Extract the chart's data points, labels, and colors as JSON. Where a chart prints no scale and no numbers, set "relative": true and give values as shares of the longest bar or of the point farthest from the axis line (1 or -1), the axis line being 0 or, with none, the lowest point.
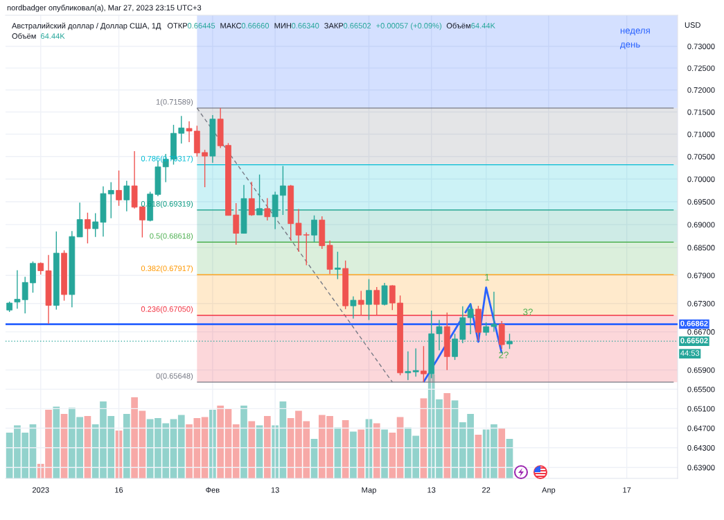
{
  "chart_data": [
    {
      "type": "candlestick",
      "title": "Австралийский доллар / Доллар США, 1Д",
      "ylabel": "USD",
      "categories": [
        null,
        null,
        null,
        null,
        "2023",
        null,
        null,
        null,
        null,
        null,
        null,
        null,
        null,
        null,
        "16",
        null,
        null,
        null,
        null,
        null,
        null,
        null,
        null,
        null,
        null,
        null,
        "Фев",
        null,
        null,
        null,
        null,
        null,
        null,
        null,
        "13",
        null,
        null,
        null,
        null,
        null,
        null,
        null,
        null,
        null,
        null,
        null,
        "Мар",
        null,
        null,
        null,
        null,
        null,
        null,
        null,
        "13",
        null,
        null,
        null,
        null,
        null,
        null,
        "22",
        null,
        null,
        null,
        null,
        null,
        null,
        null,
        "Апр",
        null,
        null,
        null,
        null,
        null,
        null,
        null,
        null,
        null,
        "17",
        null,
        null,
        null,
        null,
        null,
        null
      ],
      "ohlc": [
        [
          0.6716,
          0.6734,
          0.6712,
          0.6731
        ],
        [
          0.6733,
          0.6801,
          0.6719,
          0.6739
        ],
        [
          0.6738,
          0.6787,
          0.6709,
          0.6775
        ],
        [
          0.6774,
          0.682,
          0.6753,
          0.6816
        ],
        [
          0.6816,
          0.6818,
          0.6792,
          0.68
        ],
        [
          0.68,
          0.6834,
          0.6687,
          0.6726
        ],
        [
          0.6726,
          0.6885,
          0.6717,
          0.6838
        ],
        [
          0.6838,
          0.6844,
          0.6736,
          0.6749
        ],
        [
          0.6749,
          0.6886,
          0.6722,
          0.6874
        ],
        [
          0.6873,
          0.6948,
          0.6873,
          0.6911
        ],
        [
          0.6911,
          0.6926,
          0.6859,
          0.6891
        ],
        [
          0.6891,
          0.6925,
          0.6873,
          0.6906
        ],
        [
          0.6905,
          0.6984,
          0.6874,
          0.6968
        ],
        [
          0.6967,
          0.6993,
          0.6914,
          0.6975
        ],
        [
          0.6975,
          0.7019,
          0.6941,
          0.6954
        ],
        [
          0.6954,
          0.6996,
          0.6929,
          0.6985
        ],
        [
          0.6985,
          0.7062,
          0.6935,
          0.6938
        ],
        [
          0.6939,
          0.6939,
          0.6872,
          0.691
        ],
        [
          0.6909,
          0.6972,
          0.6907,
          0.6967
        ],
        [
          0.6966,
          0.704,
          0.6962,
          0.7027
        ],
        [
          0.7027,
          0.7056,
          0.6993,
          0.7044
        ],
        [
          0.7044,
          0.7121,
          0.7032,
          0.7102
        ],
        [
          0.7102,
          0.7141,
          0.7079,
          0.7114
        ],
        [
          0.7113,
          0.7129,
          0.7082,
          0.7107
        ],
        [
          0.7107,
          0.7119,
          0.705,
          0.7058
        ],
        [
          0.7059,
          0.7065,
          0.6982,
          0.7051
        ],
        [
          0.7051,
          0.7143,
          0.7036,
          0.7134
        ],
        [
          0.7134,
          0.7159,
          0.7069,
          0.7074
        ],
        [
          0.7075,
          0.708,
          0.692,
          0.692
        ],
        [
          0.6921,
          0.6947,
          0.6856,
          0.6881
        ],
        [
          0.6881,
          0.6987,
          0.6881,
          0.6957
        ],
        [
          0.6957,
          0.6994,
          0.6919,
          0.6921
        ],
        [
          0.6921,
          0.701,
          0.6921,
          0.6935
        ],
        [
          0.6935,
          0.6958,
          0.6909,
          0.6917
        ],
        [
          0.6917,
          0.6972,
          0.689,
          0.6965
        ],
        [
          0.6964,
          0.7029,
          0.6921,
          0.6985
        ],
        [
          0.6985,
          0.6987,
          0.6865,
          0.6902
        ],
        [
          0.6903,
          0.6934,
          0.6841,
          0.6877
        ],
        [
          0.6878,
          0.6883,
          0.6812,
          0.6877
        ],
        [
          0.6877,
          0.692,
          0.6862,
          0.691
        ],
        [
          0.691,
          0.6918,
          0.6847,
          0.6854
        ],
        [
          0.6855,
          0.6865,
          0.6793,
          0.6803
        ],
        [
          0.6803,
          0.6841,
          0.6782,
          0.6806
        ],
        [
          0.6805,
          0.6822,
          0.6718,
          0.6725
        ],
        [
          0.6725,
          0.6745,
          0.6698,
          0.6737
        ],
        [
          0.6737,
          0.6757,
          0.6705,
          0.6728
        ],
        [
          0.6728,
          0.6782,
          0.6695,
          0.6758
        ],
        [
          0.6758,
          0.6765,
          0.6706,
          0.6728
        ],
        [
          0.6728,
          0.6774,
          0.6726,
          0.6768
        ],
        [
          0.6768,
          0.6769,
          0.6716,
          0.6731
        ],
        [
          0.6731,
          0.6747,
          0.6579,
          0.6584
        ],
        [
          0.6584,
          0.6629,
          0.6569,
          0.6587
        ],
        [
          0.6586,
          0.6635,
          0.6576,
          0.6589
        ],
        [
          0.6588,
          0.664,
          0.6565,
          0.6582
        ],
        [
          0.6582,
          0.6715,
          0.6573,
          0.6666
        ],
        [
          0.6666,
          0.6695,
          0.6631,
          0.6681
        ],
        [
          0.6681,
          0.6711,
          0.659,
          0.6618
        ],
        [
          0.6618,
          0.6666,
          0.6611,
          0.6655
        ],
        [
          0.6654,
          0.6724,
          0.6646,
          0.67
        ],
        [
          0.67,
          0.6729,
          0.6665,
          0.6718
        ],
        [
          0.6718,
          0.6725,
          0.6651,
          0.6669
        ],
        [
          0.6669,
          0.669,
          0.6662,
          0.6681
        ],
        [
          0.6681,
          0.6755,
          0.667,
          0.6686
        ],
        [
          0.6686,
          0.6693,
          0.6634,
          0.6643
        ],
        [
          0.66445,
          0.6666,
          0.6634,
          0.66502
        ],
        null,
        null,
        null,
        null,
        null,
        null,
        null,
        null,
        null,
        null,
        null,
        null,
        null,
        null,
        null,
        null,
        null,
        null,
        null,
        null,
        null
      ],
      "colors": [
        "#26a69a",
        "#26a69a",
        "#26a69a",
        "#26a69a",
        "#ef5350",
        "#ef5350",
        "#26a69a",
        "#ef5350",
        "#26a69a",
        "#26a69a",
        "#ef5350",
        "#26a69a",
        "#26a69a",
        "#26a69a",
        "#ef5350",
        "#26a69a",
        "#ef5350",
        "#ef5350",
        "#26a69a",
        "#26a69a",
        "#26a69a",
        "#26a69a",
        "#26a69a",
        "#ef5350",
        "#ef5350",
        "#ef5350",
        "#26a69a",
        "#ef5350",
        "#ef5350",
        "#ef5350",
        "#26a69a",
        "#ef5350",
        "#26a69a",
        "#ef5350",
        "#26a69a",
        "#26a69a",
        "#ef5350",
        "#ef5350",
        "#ef5350",
        "#26a69a",
        "#ef5350",
        "#ef5350",
        "#26a69a",
        "#ef5350",
        "#26a69a",
        "#ef5350",
        "#26a69a",
        "#ef5350",
        "#26a69a",
        "#ef5350",
        "#ef5350",
        "#26a69a",
        "#26a69a",
        "#ef5350",
        "#26a69a",
        "#26a69a",
        "#ef5350",
        "#26a69a",
        "#26a69a",
        "#26a69a",
        "#ef5350",
        "#26a69a",
        "#26a69a",
        "#ef5350",
        "#26a69a",
        null,
        null,
        null,
        null,
        null,
        null,
        null,
        null,
        null,
        null,
        null,
        null,
        null,
        null,
        null,
        null,
        null,
        null,
        null,
        null,
        null
      ],
      "log": true,
      "ylim": [
        0.6368,
        0.7372
      ],
      "yticks": [
        {
          "value": 0.73,
          "label": "0.73000"
        },
        {
          "value": 0.725,
          "label": "0.72500"
        },
        {
          "value": 0.72,
          "label": "0.72000"
        },
        {
          "value": 0.715,
          "label": "0.71500"
        },
        {
          "value": 0.71,
          "label": "0.71000"
        },
        {
          "value": 0.705,
          "label": "0.70500"
        },
        {
          "value": 0.7,
          "label": "0.70000"
        },
        {
          "value": 0.695,
          "label": "0.69500"
        },
        {
          "value": 0.69,
          "label": "0.69000"
        },
        {
          "value": 0.685,
          "label": "0.68500"
        },
        {
          "value": 0.679,
          "label": "0.67900"
        },
        {
          "value": 0.673,
          "label": "0.67300"
        },
        {
          "value": 0.667,
          "label": "0.66700"
        },
        {
          "value": 0.659,
          "label": "0.65900"
        },
        {
          "value": 0.655,
          "label": "0.65500"
        },
        {
          "value": 0.651,
          "label": "0.65100"
        },
        {
          "value": 0.647,
          "label": "0.64700"
        },
        {
          "value": 0.643,
          "label": "0.64300"
        },
        {
          "value": 0.639,
          "label": "0.63900"
        }
      ],
      "grid": true,
      "series": [
        {
          "type": "line",
          "color": "#787b86",
          "line_style": "dashed",
          "values": [
            null,
            null,
            null,
            null,
            null,
            null,
            null,
            null,
            null,
            null,
            null,
            null,
            null,
            null,
            null,
            null,
            null,
            null,
            null,
            null,
            null,
            null,
            null,
            null,
            0.71589,
            0.71341,
            null,
            null,
            null,
            0.70359,
            0.70116,
            0.69874,
            0.69632,
            0.69391,
            null,
            0.68912,
            0.68673,
            0.68436,
            0.68199,
            0.67963,
            0.67728,
            0.67494,
            0.6726,
            0.67028,
            0.66796,
            0.66565,
            0.66335,
            0.66105,
            0.65876,
            0.65648,
            null,
            null,
            null,
            null,
            null,
            null,
            null,
            null,
            null,
            null,
            null,
            null,
            null,
            null,
            null,
            null,
            null,
            null,
            null,
            null,
            null,
            null,
            null,
            null,
            null,
            null,
            null,
            null,
            null,
            null,
            null,
            null,
            null,
            null,
            null,
            null
          ]
        },
        {
          "type": "line",
          "name": "1(0.71589)",
          "color": "#787b86",
          "values": [
            null,
            null,
            null,
            null,
            null,
            null,
            null,
            null,
            null,
            null,
            null,
            null,
            null,
            null,
            null,
            null,
            null,
            null,
            null,
            null,
            null,
            null,
            null,
            null,
            0.71589,
            0.71589,
            0.71589,
            0.71589,
            0.71589,
            0.71589,
            0.71589,
            0.71589,
            0.71589,
            0.71589,
            0.71589,
            0.71589,
            0.71589,
            0.71589,
            0.71589,
            0.71589,
            0.71589,
            0.71589,
            0.71589,
            0.71589,
            0.71589,
            0.71589,
            0.71589,
            0.71589,
            0.71589,
            0.71589,
            0.71589,
            0.71589,
            0.71589,
            0.71589,
            0.71589,
            0.71589,
            0.71589,
            0.71589,
            0.71589,
            0.71589,
            0.71589,
            0.71589,
            0.71589,
            0.71589,
            0.71589,
            0.71589,
            0.71589,
            0.71589,
            0.71589,
            0.71589,
            0.71589,
            0.71589,
            0.71589,
            0.71589,
            0.71589,
            0.71589,
            0.71589,
            0.71589,
            0.71589,
            0.71589,
            0.71589,
            0.71589,
            0.71589,
            0.71589,
            0.71589,
            0.71589
          ]
        },
        {
          "type": "line",
          "name": "0.786(0.70317)",
          "color": "#00bcd4",
          "values": [
            null,
            null,
            null,
            null,
            null,
            null,
            null,
            null,
            null,
            null,
            null,
            null,
            null,
            null,
            null,
            null,
            null,
            null,
            null,
            null,
            null,
            null,
            null,
            null,
            0.70317,
            0.70317,
            0.70317,
            0.70317,
            null,
            0.70317,
            0.70317,
            0.70317,
            0.70317,
            0.70317,
            0.70317,
            0.70317,
            0.70317,
            0.70317,
            0.70317,
            0.70317,
            0.70317,
            0.70317,
            0.70317,
            0.70317,
            0.70317,
            0.70317,
            0.70317,
            0.70317,
            0.70317,
            0.70317,
            0.70317,
            0.70317,
            0.70317,
            0.70317,
            0.70317,
            0.70317,
            0.70317,
            0.70317,
            0.70317,
            0.70317,
            0.70317,
            0.70317,
            0.70317,
            0.70317,
            0.70317,
            0.70317,
            0.70317,
            0.70317,
            0.70317,
            0.70317,
            0.70317,
            0.70317,
            0.70317,
            0.70317,
            0.70317,
            0.70317,
            0.70317,
            0.70317,
            0.70317,
            0.70317,
            0.70317,
            0.70317,
            0.70317,
            0.70317,
            0.70317,
            0.70317
          ]
        },
        {
          "type": "line",
          "name": "0.618(0.69319)",
          "color": "#089981",
          "values": [
            null,
            null,
            null,
            null,
            null,
            null,
            null,
            null,
            null,
            null,
            null,
            null,
            null,
            null,
            null,
            null,
            null,
            null,
            null,
            null,
            null,
            null,
            null,
            null,
            0.69319,
            0.69319,
            0.69319,
            0.69319,
            null,
            null,
            null,
            null,
            null,
            null,
            null,
            null,
            null,
            0.69319,
            0.69319,
            0.69319,
            0.69319,
            0.69319,
            0.69319,
            0.69319,
            0.69319,
            0.69319,
            0.69319,
            0.69319,
            0.69319,
            0.69319,
            0.69319,
            0.69319,
            0.69319,
            0.69319,
            0.69319,
            0.69319,
            0.69319,
            0.69319,
            0.69319,
            0.69319,
            0.69319,
            0.69319,
            0.69319,
            0.69319,
            0.69319,
            0.69319,
            0.69319,
            0.69319,
            0.69319,
            0.69319,
            0.69319,
            0.69319,
            0.69319,
            0.69319,
            0.69319,
            0.69319,
            0.69319,
            0.69319,
            0.69319,
            0.69319,
            0.69319,
            0.69319,
            0.69319,
            0.69319,
            0.69319,
            0.69319
          ]
        },
        {
          "type": "line",
          "name": "0.5(0.68618)",
          "color": "#4caf50",
          "values": [
            null,
            null,
            null,
            null,
            null,
            null,
            null,
            null,
            null,
            null,
            null,
            null,
            null,
            null,
            null,
            null,
            null,
            null,
            null,
            null,
            null,
            null,
            null,
            null,
            0.68618,
            0.68618,
            0.68618,
            0.68618,
            0.68618,
            0.68618,
            0.68618,
            0.68618,
            0.68618,
            0.68618,
            0.68618,
            0.68618,
            0.68618,
            0.68618,
            0.68618,
            0.68618,
            null,
            0.68618,
            0.68618,
            0.68618,
            0.68618,
            0.68618,
            0.68618,
            0.68618,
            0.68618,
            0.68618,
            0.68618,
            0.68618,
            0.68618,
            0.68618,
            0.68618,
            0.68618,
            0.68618,
            0.68618,
            0.68618,
            0.68618,
            0.68618,
            0.68618,
            0.68618,
            0.68618,
            0.68618,
            0.68618,
            0.68618,
            0.68618,
            0.68618,
            0.68618,
            0.68618,
            0.68618,
            0.68618,
            0.68618,
            0.68618,
            0.68618,
            0.68618,
            0.68618,
            0.68618,
            0.68618,
            0.68618,
            0.68618,
            0.68618,
            0.68618,
            0.68618,
            0.68618
          ]
        },
        {
          "type": "line",
          "name": "0.382(0.67917)",
          "color": "#ff9800",
          "values": [
            null,
            null,
            null,
            null,
            null,
            null,
            null,
            null,
            null,
            null,
            null,
            null,
            null,
            null,
            null,
            null,
            null,
            null,
            null,
            null,
            null,
            null,
            null,
            null,
            0.67917,
            0.67917,
            0.67917,
            0.67917,
            0.67917,
            0.67917,
            0.67917,
            0.67917,
            0.67917,
            0.67917,
            0.67917,
            0.67917,
            0.67917,
            0.67917,
            0.67917,
            0.67917,
            0.67917,
            0.67917,
            0.67917,
            null,
            0.67917,
            0.67917,
            0.67917,
            0.67917,
            0.67917,
            0.67917,
            0.67917,
            0.67917,
            0.67917,
            0.67917,
            0.67917,
            0.67917,
            0.67917,
            0.67917,
            0.67917,
            0.67917,
            0.67917,
            0.67917,
            0.67917,
            0.67917,
            0.67917,
            0.67917,
            0.67917,
            0.67917,
            0.67917,
            0.67917,
            0.67917,
            0.67917,
            0.67917,
            0.67917,
            0.67917,
            0.67917,
            0.67917,
            0.67917,
            0.67917,
            0.67917,
            0.67917,
            0.67917,
            0.67917,
            0.67917,
            0.67917,
            0.67917
          ]
        },
        {
          "type": "line",
          "name": "0.236(0.67050)",
          "color": "#f23645",
          "values": [
            null,
            null,
            null,
            null,
            null,
            null,
            null,
            null,
            null,
            null,
            null,
            null,
            null,
            null,
            null,
            null,
            null,
            null,
            null,
            null,
            null,
            null,
            null,
            null,
            0.6705,
            0.6705,
            0.6705,
            0.6705,
            0.6705,
            0.6705,
            0.6705,
            0.6705,
            0.6705,
            0.6705,
            0.6705,
            0.6705,
            0.6705,
            0.6705,
            0.6705,
            0.6705,
            0.6705,
            0.6705,
            0.6705,
            0.6705,
            0.6705,
            0.6705,
            0.6705,
            0.6705,
            0.6705,
            0.6705,
            null,
            0.6705,
            0.6705,
            0.6705,
            0.6705,
            0.6705,
            0.6705,
            0.6705,
            0.6705,
            null,
            null,
            0.6705,
            0.6705,
            0.6705,
            0.6705,
            0.6705,
            0.6705,
            0.6705,
            0.6705,
            0.6705,
            0.6705,
            0.6705,
            0.6705,
            0.6705,
            0.6705,
            0.6705,
            0.6705,
            0.6705,
            0.6705,
            0.6705,
            0.6705,
            0.6705,
            0.6705,
            0.6705,
            0.6705,
            0.6705
          ]
        },
        {
          "type": "line",
          "name": "0(0.65648)",
          "color": "#787b86",
          "values": [
            null,
            null,
            null,
            null,
            null,
            null,
            null,
            null,
            null,
            null,
            null,
            null,
            null,
            null,
            null,
            null,
            null,
            null,
            null,
            null,
            null,
            null,
            null,
            null,
            0.65648,
            0.65648,
            0.65648,
            0.65648,
            0.65648,
            0.65648,
            0.65648,
            0.65648,
            0.65648,
            0.65648,
            0.65648,
            0.65648,
            0.65648,
            0.65648,
            0.65648,
            0.65648,
            0.65648,
            0.65648,
            0.65648,
            0.65648,
            0.65648,
            0.65648,
            0.65648,
            0.65648,
            0.65648,
            0.65648,
            0.65648,
            0.65648,
            0.65648,
            0.65648,
            0.65648,
            0.65648,
            0.65648,
            0.65648,
            0.65648,
            0.65648,
            0.65648,
            0.65648,
            0.65648,
            0.65648,
            0.65648,
            0.65648,
            0.65648,
            0.65648,
            0.65648,
            0.65648,
            0.65648,
            0.65648,
            0.65648,
            0.65648,
            0.65648,
            0.65648,
            0.65648,
            0.65648,
            0.65648,
            0.65648,
            0.65648,
            0.65648,
            0.65648,
            0.65648,
            0.65648,
            0.65648
          ]
        },
        {
          "type": "line",
          "color": "#2962ff",
          "values": [
            null,
            null,
            null,
            null,
            null,
            null,
            null,
            null,
            null,
            null,
            null,
            null,
            null,
            null,
            null,
            null,
            null,
            null,
            null,
            null,
            null,
            null,
            null,
            null,
            null,
            null,
            null,
            null,
            null,
            null,
            null,
            null,
            null,
            null,
            null,
            null,
            null,
            null,
            null,
            null,
            null,
            null,
            null,
            null,
            null,
            null,
            null,
            null,
            null,
            null,
            null,
            null,
            null,
            0.6565,
            null,
            0.66192,
            null,
            0.66739,
            null,
            0.6729,
            0.6649,
            0.6764,
            0.66942,
            0.6625,
            null,
            null,
            null,
            null,
            null,
            null,
            null,
            null,
            null,
            null,
            null,
            null,
            null,
            null,
            null,
            null,
            null,
            null,
            null,
            null,
            null,
            null
          ]
        }
      ],
      "bands": [
        {
          "axis": "y",
          "from": 0.71589,
          "to": 0.7372,
          "color": "#d4e0ff"
        },
        {
          "axis": "y",
          "from": 0.70317,
          "to": 0.71589,
          "color": "#e4e5e7"
        },
        {
          "axis": "y",
          "from": 0.69319,
          "to": 0.70317,
          "color": "#ccf2f6"
        },
        {
          "axis": "y",
          "from": 0.68618,
          "to": 0.69319,
          "color": "#ceebe6"
        },
        {
          "axis": "y",
          "from": 0.67917,
          "to": 0.68618,
          "color": "#dbefdc"
        },
        {
          "axis": "y",
          "from": 0.6705,
          "to": 0.67917,
          "color": "#ffeacc"
        },
        {
          "axis": "y",
          "from": 0.65648,
          "to": 0.6705,
          "color": "#fcd7da"
        }
      ],
      "ref_lines": [
        {
          "axis": "y",
          "value": 0.66862,
          "label": "0.66862",
          "color": "#2962ff"
        },
        {
          "axis": "y",
          "value": 0.66502,
          "label": "0.66502",
          "color": "#26a69a",
          "line_style": "dotted"
        }
      ],
      "annotations": [
        "nordbadger опубликовал(а), Mar 27, 2023 23:15 UTC+3",
        "ОТКР",
        "0.66445",
        "МАКС",
        "0.66660",
        "МИН",
        "0.66340",
        "ЗАКР",
        "0.66502",
        "+0.00057 (+0.09%)",
        "Объём",
        "64.44K",
        "неделя",
        "день",
        "44:53",
        "1",
        "2?",
        "3?"
      ]
    },
    {
      "type": "bar",
      "relative": true,
      "categories": [
        null,
        null,
        null,
        null,
        null,
        null,
        null,
        null,
        null,
        null,
        null,
        null,
        null,
        null,
        null,
        null,
        null,
        null,
        null,
        null,
        null,
        null,
        null,
        null,
        null,
        null,
        null,
        null,
        null,
        null,
        null,
        null,
        null,
        null,
        null,
        null,
        null,
        null,
        null,
        null,
        null,
        null,
        null,
        null,
        null,
        null,
        null,
        null,
        null,
        null,
        null,
        null,
        null,
        null,
        null,
        null,
        null,
        null,
        null,
        null,
        null,
        null,
        null,
        null,
        null,
        null,
        null,
        null,
        null,
        null,
        null,
        null,
        null,
        null,
        null,
        null,
        null,
        null,
        null,
        null,
        null,
        null,
        null,
        null,
        null,
        null
      ],
      "values": [
        0.44,
        0.51,
        0.44,
        0.52,
        0.14,
        0.66,
        0.69,
        0.62,
        0.68,
        0.59,
        0.6,
        0.52,
        0.74,
        0.6,
        0.46,
        0.62,
        0.78,
        0.65,
        0.57,
        0.58,
        0.53,
        0.57,
        0.61,
        0.52,
        0.58,
        0.59,
        0.66,
        0.7,
        0.67,
        0.52,
        0.7,
        0.55,
        0.51,
        0.6,
        0.51,
        0.74,
        0.58,
        0.65,
        0.55,
        0.38,
        0.61,
        0.6,
        0.49,
        0.56,
        0.45,
        0.47,
        0.57,
        0.53,
        0.47,
        0.44,
        0.59,
        0.49,
        0.41,
        0.77,
        1,
        0.76,
        0.82,
        0.75,
        0.54,
        0.62,
        0.42,
        0.47,
        0.52,
        0.48,
        0.38,
        null,
        null,
        null,
        null,
        null,
        null,
        null,
        null,
        null,
        null,
        null,
        null,
        null,
        null,
        null,
        null,
        null,
        null,
        null,
        null,
        null
      ],
      "colors": [
        "#92d2cc",
        "#92d2cc",
        "#92d2cc",
        "#92d2cc",
        "#f7a9a7",
        "#f7a9a7",
        "#92d2cc",
        "#f7a9a7",
        "#92d2cc",
        "#92d2cc",
        "#f7a9a7",
        "#92d2cc",
        "#92d2cc",
        "#92d2cc",
        "#f7a9a7",
        "#92d2cc",
        "#f7a9a7",
        "#f7a9a7",
        "#92d2cc",
        "#92d2cc",
        "#92d2cc",
        "#92d2cc",
        "#92d2cc",
        "#f7a9a7",
        "#f7a9a7",
        "#f7a9a7",
        "#92d2cc",
        "#f7a9a7",
        "#f7a9a7",
        "#f7a9a7",
        "#92d2cc",
        "#f7a9a7",
        "#92d2cc",
        "#f7a9a7",
        "#92d2cc",
        "#92d2cc",
        "#f7a9a7",
        "#f7a9a7",
        "#f7a9a7",
        "#92d2cc",
        "#f7a9a7",
        "#f7a9a7",
        "#92d2cc",
        "#f7a9a7",
        "#92d2cc",
        "#f7a9a7",
        "#92d2cc",
        "#f7a9a7",
        "#92d2cc",
        "#f7a9a7",
        "#f7a9a7",
        "#92d2cc",
        "#92d2cc",
        "#f7a9a7",
        "#92d2cc",
        "#92d2cc",
        "#f7a9a7",
        "#92d2cc",
        "#92d2cc",
        "#92d2cc",
        "#f7a9a7",
        "#92d2cc",
        "#92d2cc",
        "#f7a9a7",
        "#92d2cc",
        null,
        null,
        null,
        null,
        null,
        null,
        null,
        null,
        null,
        null,
        null,
        null,
        null,
        null,
        null,
        null,
        null,
        null,
        null,
        null,
        null
      ],
      "annotations": [
        "Объём",
        "64.44K"
      ]
    }
  ]
}
